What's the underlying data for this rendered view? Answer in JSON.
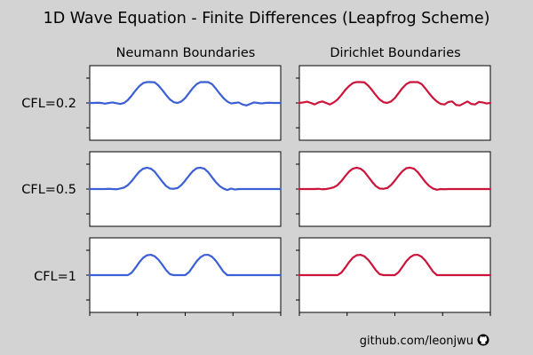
{
  "title": "1D Wave Equation - Finite Differences (Leapfrog Scheme)",
  "column_titles": [
    "Neumann Boundaries",
    "Dirichlet Boundaries"
  ],
  "row_labels": [
    "CFL=0.2",
    "CFL=0.5",
    "CFL=1"
  ],
  "credit": "github.com/leonjwu",
  "icons": {
    "credit_icon": "github-icon"
  },
  "colors": {
    "neumann": "#3b5fd4",
    "dirichlet": "#cc1339",
    "background": "#d3d3d3"
  },
  "chart_data": [
    {
      "type": "line",
      "title": "",
      "row_label": "CFL=0.2",
      "column": "Neumann Boundaries",
      "x": [
        0,
        0.02,
        0.04,
        0.06,
        0.08,
        0.1,
        0.12,
        0.14,
        0.16,
        0.18,
        0.2,
        0.22,
        0.24,
        0.26,
        0.28,
        0.3,
        0.32,
        0.34,
        0.36,
        0.38,
        0.4,
        0.42,
        0.44,
        0.46,
        0.48,
        0.5,
        0.52,
        0.54,
        0.56,
        0.58,
        0.6,
        0.62,
        0.64,
        0.66,
        0.68,
        0.7,
        0.72,
        0.74,
        0.76,
        0.78,
        0.8,
        0.82,
        0.84,
        0.86,
        0.88,
        0.9,
        0.92,
        0.94,
        0.96,
        0.98,
        1
      ],
      "y": [
        0,
        0,
        0.01,
        0,
        -0.03,
        0,
        0.02,
        -0.01,
        -0.04,
        0,
        0.12,
        0.3,
        0.5,
        0.68,
        0.8,
        0.84,
        0.84,
        0.83,
        0.7,
        0.52,
        0.32,
        0.14,
        0.03,
        0,
        0.06,
        0.2,
        0.4,
        0.6,
        0.76,
        0.84,
        0.84,
        0.84,
        0.76,
        0.58,
        0.38,
        0.2,
        0.06,
        -0.02,
        0,
        0.02,
        -0.06,
        -0.1,
        -0.04,
        0.02,
        0,
        -0.02,
        0,
        0.01,
        0,
        0,
        0
      ],
      "ylim": [
        -1.5,
        1.5
      ],
      "xlim": [
        0,
        1
      ]
    },
    {
      "type": "line",
      "title": "",
      "row_label": "CFL=0.2",
      "column": "Dirichlet Boundaries",
      "x": [
        0,
        0.02,
        0.04,
        0.06,
        0.08,
        0.1,
        0.12,
        0.14,
        0.16,
        0.18,
        0.2,
        0.22,
        0.24,
        0.26,
        0.28,
        0.3,
        0.32,
        0.34,
        0.36,
        0.38,
        0.4,
        0.42,
        0.44,
        0.46,
        0.48,
        0.5,
        0.52,
        0.54,
        0.56,
        0.58,
        0.6,
        0.62,
        0.64,
        0.66,
        0.68,
        0.7,
        0.72,
        0.74,
        0.76,
        0.78,
        0.8,
        0.82,
        0.84,
        0.86,
        0.88,
        0.9,
        0.92,
        0.94,
        0.96,
        0.98,
        1
      ],
      "y": [
        0,
        0.02,
        0.05,
        0,
        -0.06,
        0.02,
        0.06,
        0,
        -0.06,
        0.02,
        0.14,
        0.32,
        0.52,
        0.68,
        0.8,
        0.84,
        0.84,
        0.83,
        0.7,
        0.52,
        0.32,
        0.14,
        0.03,
        0,
        0.06,
        0.2,
        0.4,
        0.6,
        0.76,
        0.84,
        0.84,
        0.84,
        0.76,
        0.58,
        0.38,
        0.2,
        0.06,
        -0.04,
        -0.06,
        0.04,
        0.06,
        -0.08,
        -0.1,
        -0.02,
        0.06,
        -0.04,
        -0.06,
        0.04,
        0.02,
        -0.02,
        0
      ],
      "ylim": [
        -1.5,
        1.5
      ],
      "xlim": [
        0,
        1
      ]
    },
    {
      "type": "line",
      "title": "",
      "row_label": "CFL=0.5",
      "column": "Neumann Boundaries",
      "x": [
        0,
        0.02,
        0.04,
        0.06,
        0.08,
        0.1,
        0.12,
        0.14,
        0.16,
        0.18,
        0.2,
        0.22,
        0.24,
        0.26,
        0.28,
        0.3,
        0.32,
        0.34,
        0.36,
        0.38,
        0.4,
        0.42,
        0.44,
        0.46,
        0.48,
        0.5,
        0.52,
        0.54,
        0.56,
        0.58,
        0.6,
        0.62,
        0.64,
        0.66,
        0.68,
        0.7,
        0.72,
        0.74,
        0.76,
        0.78,
        0.8,
        0.82,
        0.84,
        0.86,
        0.88,
        0.9,
        0.92,
        0.94,
        0.96,
        0.98,
        1
      ],
      "y": [
        0,
        0,
        0,
        0,
        0,
        0.01,
        0,
        -0.01,
        0.02,
        0.06,
        0.16,
        0.32,
        0.52,
        0.7,
        0.82,
        0.86,
        0.82,
        0.7,
        0.5,
        0.3,
        0.12,
        0.02,
        0.01,
        0.04,
        0.16,
        0.34,
        0.54,
        0.72,
        0.84,
        0.86,
        0.82,
        0.68,
        0.48,
        0.28,
        0.12,
        0.02,
        -0.04,
        0.02,
        -0.02,
        0,
        0,
        0,
        0,
        0,
        0,
        0,
        0,
        0,
        0,
        0,
        0
      ],
      "ylim": [
        -1.5,
        1.5
      ],
      "xlim": [
        0,
        1
      ]
    },
    {
      "type": "line",
      "title": "",
      "row_label": "CFL=0.5",
      "column": "Dirichlet Boundaries",
      "x": [
        0,
        0.02,
        0.04,
        0.06,
        0.08,
        0.1,
        0.12,
        0.14,
        0.16,
        0.18,
        0.2,
        0.22,
        0.24,
        0.26,
        0.28,
        0.3,
        0.32,
        0.34,
        0.36,
        0.38,
        0.4,
        0.42,
        0.44,
        0.46,
        0.48,
        0.5,
        0.52,
        0.54,
        0.56,
        0.58,
        0.6,
        0.62,
        0.64,
        0.66,
        0.68,
        0.7,
        0.72,
        0.74,
        0.76,
        0.78,
        0.8,
        0.82,
        0.84,
        0.86,
        0.88,
        0.9,
        0.92,
        0.94,
        0.96,
        0.98,
        1
      ],
      "y": [
        0,
        0,
        0,
        0,
        0,
        0.01,
        -0.01,
        0,
        0.03,
        0.07,
        0.16,
        0.32,
        0.52,
        0.7,
        0.82,
        0.86,
        0.82,
        0.7,
        0.5,
        0.3,
        0.12,
        0.02,
        0.01,
        0.04,
        0.16,
        0.34,
        0.54,
        0.72,
        0.84,
        0.86,
        0.82,
        0.68,
        0.48,
        0.28,
        0.12,
        0.02,
        -0.03,
        0,
        -0.01,
        0,
        0,
        0,
        0,
        0,
        0,
        0,
        0,
        0,
        0,
        0,
        0
      ],
      "ylim": [
        -1.5,
        1.5
      ],
      "xlim": [
        0,
        1
      ]
    },
    {
      "type": "line",
      "title": "",
      "row_label": "CFL=1",
      "column": "Neumann Boundaries",
      "x": [
        0,
        0.02,
        0.04,
        0.06,
        0.08,
        0.1,
        0.12,
        0.14,
        0.16,
        0.18,
        0.2,
        0.22,
        0.24,
        0.26,
        0.28,
        0.3,
        0.32,
        0.34,
        0.36,
        0.38,
        0.4,
        0.42,
        0.44,
        0.46,
        0.48,
        0.5,
        0.52,
        0.54,
        0.56,
        0.58,
        0.6,
        0.62,
        0.64,
        0.66,
        0.68,
        0.7,
        0.72,
        0.74,
        0.76,
        0.78,
        0.8,
        0.82,
        0.84,
        0.86,
        0.88,
        0.9,
        0.92,
        0.94,
        0.96,
        0.98,
        1
      ],
      "y": [
        0,
        0,
        0,
        0,
        0,
        0,
        0,
        0,
        0,
        0,
        0,
        0.1,
        0.3,
        0.52,
        0.7,
        0.8,
        0.82,
        0.76,
        0.62,
        0.42,
        0.2,
        0.04,
        0,
        0,
        0,
        0,
        0.12,
        0.34,
        0.56,
        0.72,
        0.81,
        0.82,
        0.74,
        0.58,
        0.36,
        0.14,
        0,
        0,
        0,
        0,
        0,
        0,
        0,
        0,
        0,
        0,
        0,
        0,
        0,
        0,
        0
      ],
      "ylim": [
        -1.5,
        1.5
      ],
      "xlim": [
        0,
        1
      ]
    },
    {
      "type": "line",
      "title": "",
      "row_label": "CFL=1",
      "column": "Dirichlet Boundaries",
      "x": [
        0,
        0.02,
        0.04,
        0.06,
        0.08,
        0.1,
        0.12,
        0.14,
        0.16,
        0.18,
        0.2,
        0.22,
        0.24,
        0.26,
        0.28,
        0.3,
        0.32,
        0.34,
        0.36,
        0.38,
        0.4,
        0.42,
        0.44,
        0.46,
        0.48,
        0.5,
        0.52,
        0.54,
        0.56,
        0.58,
        0.6,
        0.62,
        0.64,
        0.66,
        0.68,
        0.7,
        0.72,
        0.74,
        0.76,
        0.78,
        0.8,
        0.82,
        0.84,
        0.86,
        0.88,
        0.9,
        0.92,
        0.94,
        0.96,
        0.98,
        1
      ],
      "y": [
        0,
        0,
        0,
        0,
        0,
        0,
        0,
        0,
        0,
        0,
        0,
        0.1,
        0.3,
        0.52,
        0.7,
        0.8,
        0.82,
        0.76,
        0.62,
        0.42,
        0.2,
        0.04,
        0,
        0,
        0,
        0,
        0.12,
        0.34,
        0.56,
        0.72,
        0.81,
        0.82,
        0.74,
        0.58,
        0.36,
        0.14,
        0,
        0,
        0,
        0,
        0,
        0,
        0,
        0,
        0,
        0,
        0,
        0,
        0,
        0,
        0
      ],
      "ylim": [
        -1.5,
        1.5
      ],
      "xlim": [
        0,
        1
      ]
    }
  ]
}
